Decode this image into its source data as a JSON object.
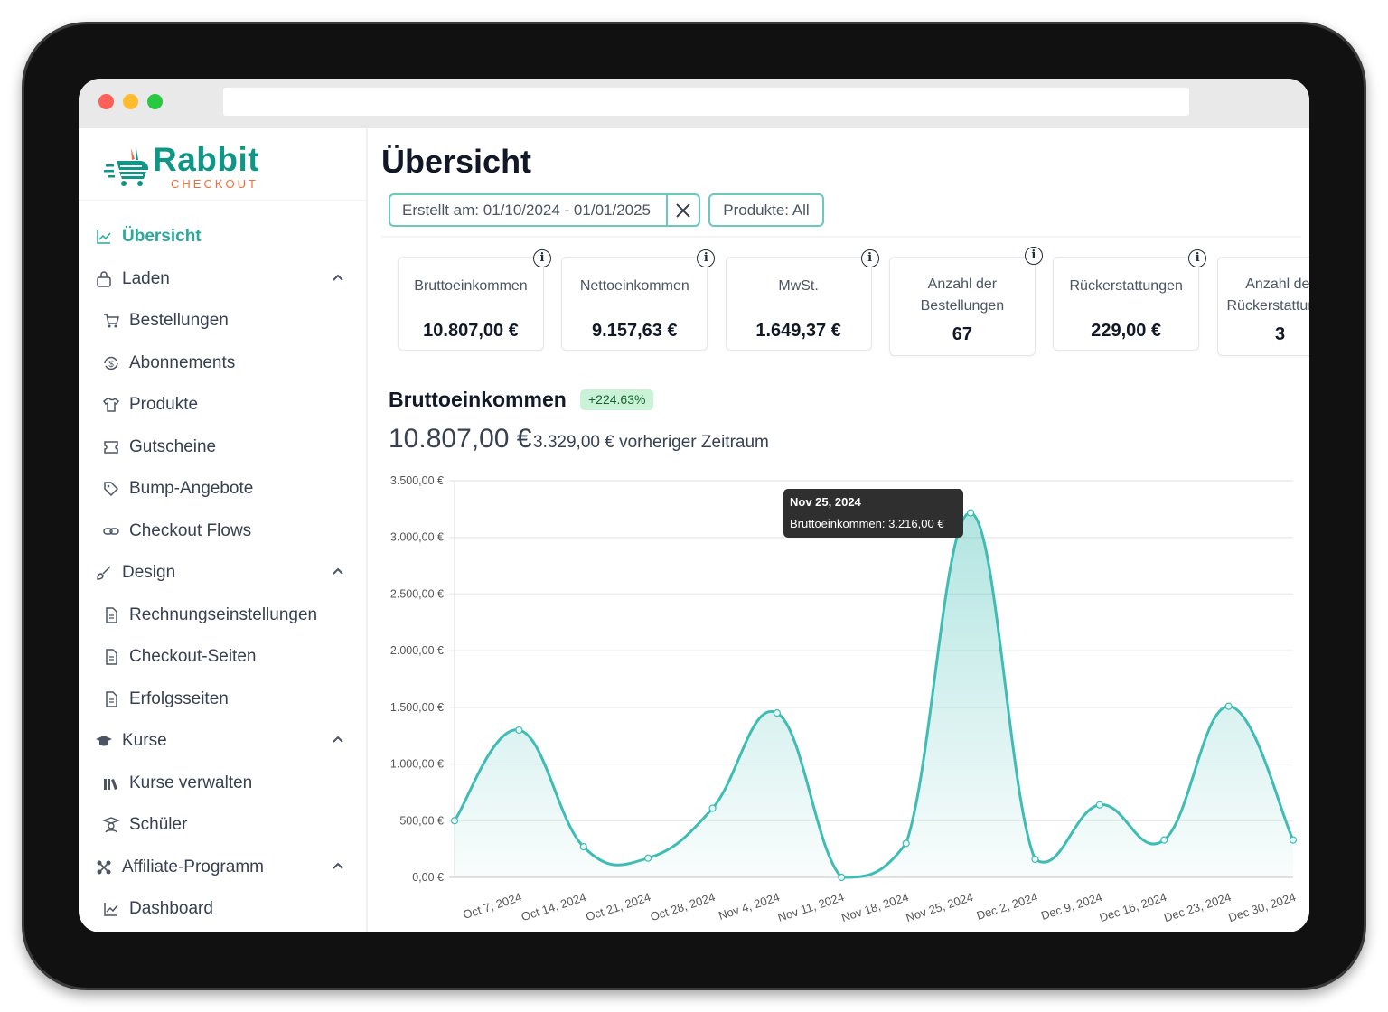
{
  "colors": {
    "accent": "#2aa89b",
    "line": "#3fbdb4",
    "logo_green": "#0f9686",
    "logo_orange": "#f26b3a"
  },
  "logo": {
    "name": "Rabbit",
    "tagline": "CHECKOUT"
  },
  "sidebar": {
    "items": [
      {
        "label": "Übersicht",
        "icon": "chart-line-icon",
        "active": true
      },
      {
        "label": "Laden",
        "icon": "shopping-bag-icon",
        "expanded": true
      },
      {
        "label": "Bestellungen",
        "icon": "cart-icon"
      },
      {
        "label": "Abonnements",
        "icon": "recurring-dollar-icon"
      },
      {
        "label": "Produkte",
        "icon": "shirt-icon"
      },
      {
        "label": "Gutscheine",
        "icon": "ticket-icon"
      },
      {
        "label": "Bump-Angebote",
        "icon": "tag-icon"
      },
      {
        "label": "Checkout Flows",
        "icon": "link-icon"
      },
      {
        "label": "Design",
        "icon": "brush-icon",
        "expanded": true
      },
      {
        "label": "Rechnungseinstellungen",
        "icon": "document-icon"
      },
      {
        "label": "Checkout-Seiten",
        "icon": "document-icon"
      },
      {
        "label": "Erfolgsseiten",
        "icon": "document-icon"
      },
      {
        "label": "Kurse",
        "icon": "graduation-cap-icon",
        "expanded": true
      },
      {
        "label": "Kurse verwalten",
        "icon": "books-icon"
      },
      {
        "label": "Schüler",
        "icon": "student-icon"
      },
      {
        "label": "Affiliate-Programm",
        "icon": "network-icon",
        "expanded": true
      },
      {
        "label": "Dashboard",
        "icon": "chart-line-icon"
      }
    ]
  },
  "main": {
    "title": "Übersicht",
    "filters": {
      "date": "Erstellt am: 01/10/2024 - 01/01/2025",
      "products": "Produkte: All"
    },
    "cards": [
      {
        "label": "Bruttoeinkommen",
        "value": "10.807,00 €"
      },
      {
        "label": "Nettoeinkommen",
        "value": "9.157,63 €"
      },
      {
        "label": "MwSt.",
        "value": "1.649,37 €"
      },
      {
        "label": "Anzahl der Bestellungen",
        "value": "67"
      },
      {
        "label": "Rückerstattungen",
        "value": "229,00 €"
      },
      {
        "label": "Anzahl der Rückerstattungen",
        "value": "3"
      }
    ],
    "section": {
      "title": "Bruttoeinkommen",
      "change": "+224.63%",
      "total": "10.807,00 €",
      "previous": "3.329,00 € vorheriger Zeitraum"
    },
    "tooltip": {
      "date": "Nov 25, 2024",
      "text": "Bruttoeinkommen: 3.216,00 €"
    }
  },
  "chart_data": {
    "type": "area",
    "categories": [
      "",
      "Oct 7, 2024",
      "Oct 14, 2024",
      "Oct 21, 2024",
      "Oct 28, 2024",
      "Nov 4, 2024",
      "Nov 11, 2024",
      "Nov 18, 2024",
      "Nov 25, 2024",
      "Dec 2, 2024",
      "Dec 9, 2024",
      "Dec 16, 2024",
      "Dec 23, 2024",
      "Dec 30, 2024"
    ],
    "series": [
      {
        "name": "Bruttoeinkommen",
        "values": [
          500,
          1300,
          270,
          170,
          610,
          1450,
          0,
          300,
          3216,
          160,
          640,
          330,
          1510,
          330
        ]
      }
    ],
    "ylim": [
      0,
      3500
    ],
    "yticks": [
      "0,00 €",
      "500,00 €",
      "1.000,00 €",
      "1.500,00 €",
      "2.000,00 €",
      "2.500,00 €",
      "3.000,00 €",
      "3.500,00 €"
    ],
    "grid": true
  }
}
